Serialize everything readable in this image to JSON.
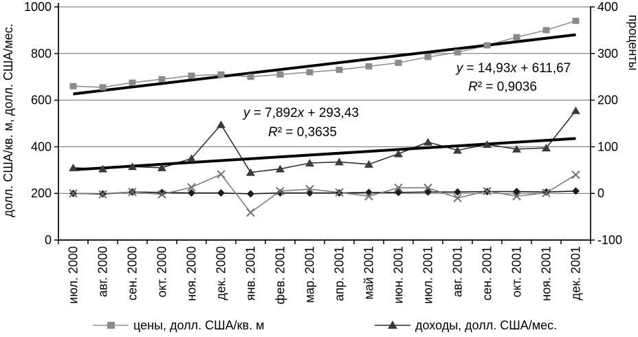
{
  "chart_data": {
    "type": "line",
    "title": "",
    "grid": true,
    "legend_position": "bottom",
    "categories": [
      "июл. 2000",
      "авг. 2000",
      "сен. 2000",
      "окт. 2000",
      "ноя. 2000",
      "дек. 2000",
      "янв. 2001",
      "фев. 2001",
      "мар. 2001",
      "апр. 2001",
      "май 2001",
      "июн. 2001",
      "июл. 2001",
      "авг. 2001",
      "сен. 2001",
      "окт. 2001",
      "ноя. 2001",
      "дек. 2001"
    ],
    "left_axis": {
      "label": "долл. США/кв. м, долл. США/мес.",
      "min": 0,
      "max": 1000,
      "ticks": [
        0,
        200,
        400,
        600,
        800,
        1000
      ]
    },
    "right_axis": {
      "label": "проценты",
      "min": -100,
      "max": 400,
      "ticks": [
        -100,
        0,
        100,
        200,
        300,
        400
      ]
    },
    "series": [
      {
        "id": "prices",
        "name": "цены, долл. США/кв. м",
        "axis": "left",
        "marker": "square",
        "marker_color": "#8a8a8a",
        "line_color": "#8f8f8f",
        "in_legend": true,
        "values": [
          660,
          655,
          675,
          690,
          705,
          710,
          700,
          710,
          720,
          730,
          745,
          760,
          785,
          805,
          835,
          870,
          900,
          940
        ]
      },
      {
        "id": "incomes",
        "name": "доходы, долл. США/мес.",
        "axis": "left",
        "marker": "triangle",
        "marker_color": "#3b3b3b",
        "line_color": "#2e2e2e",
        "in_legend": true,
        "values": [
          310,
          305,
          315,
          310,
          350,
          495,
          290,
          305,
          330,
          335,
          325,
          370,
          420,
          385,
          410,
          390,
          395,
          555
        ]
      },
      {
        "id": "pct-diamond",
        "name": "",
        "axis": "right",
        "marker": "diamond",
        "marker_color": "#1c1c1c",
        "line_color": "#1c1c1c",
        "in_legend": false,
        "values": [
          0,
          -1,
          3,
          2,
          1,
          1,
          -1,
          1,
          1,
          1,
          2,
          2,
          3,
          3,
          4,
          4,
          3,
          5
        ]
      },
      {
        "id": "pct-x",
        "name": "",
        "axis": "right",
        "marker": "x",
        "marker_color": "#6f6f6f",
        "line_color": "#7c7c7c",
        "in_legend": false,
        "values": [
          0,
          -2,
          3,
          -2,
          13,
          41,
          -41,
          5,
          9,
          2,
          -6,
          12,
          12,
          -10,
          5,
          -6,
          1,
          40
        ]
      }
    ],
    "trendlines": [
      {
        "equation": "y = 14,93x + 611,67",
        "r2": "R² = 0,9036",
        "slope": 14.93,
        "intercept": 611.67,
        "axis": "left",
        "color": "#000000"
      },
      {
        "equation": "y = 7,892x + 293,43",
        "r2": "R² = 0,3635",
        "slope": 7.892,
        "intercept": 293.43,
        "axis": "left",
        "color": "#000000"
      }
    ]
  }
}
